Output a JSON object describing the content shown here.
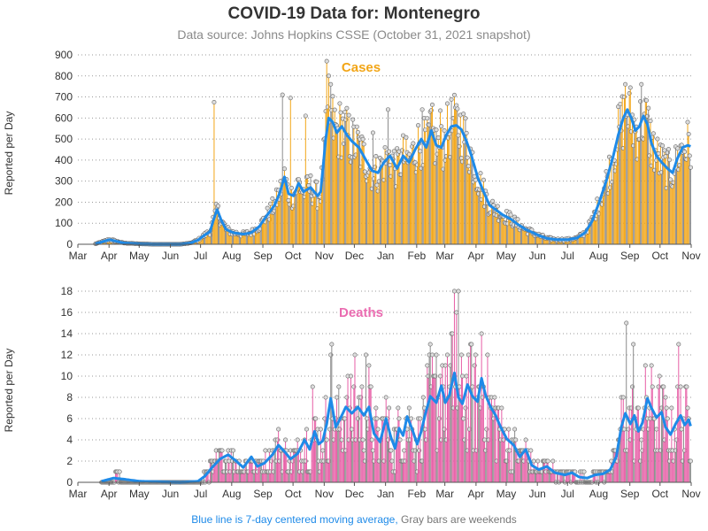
{
  "title": "COVID-19 Data for: Montenegro",
  "subtitle": "Data source: Johns Hopkins CSSE (October 31, 2021 snapshot)",
  "footnote": {
    "blue_text": "Blue line is 7-day centered moving average,",
    "gray_text": "Gray bars are weekends"
  },
  "colors": {
    "cases": "#f2a516",
    "cases_label": "#f2a516",
    "deaths": "#e75ea6",
    "deaths_label": "#ea6bb0",
    "average": "#1e8ae8",
    "weekend": "#8c8c8c",
    "grid": "#999999"
  },
  "chart_data": [
    {
      "type": "bar",
      "label": "Cases",
      "ylabel": "Reported per Day",
      "ylim": [
        0,
        900
      ],
      "yticks": [
        0,
        100,
        200,
        300,
        400,
        500,
        600,
        700,
        800,
        900
      ],
      "months": [
        "Mar",
        "Apr",
        "May",
        "Jun",
        "Jul",
        "Aug",
        "Sep",
        "Oct",
        "Nov",
        "Dec",
        "Jan",
        "Feb",
        "Mar",
        "Apr",
        "May",
        "Jun",
        "Jul",
        "Aug",
        "Sep",
        "Oct",
        "Nov"
      ],
      "grid": "horizontal dotted",
      "series": [
        {
          "name": "Cases",
          "description": "daily reported cases (bars, gray on weekends)"
        },
        {
          "name": "7-day average",
          "description": "blue moving-average line"
        }
      ],
      "average_points": [
        [
          "2020-03-18",
          2
        ],
        [
          "2020-03-25",
          12
        ],
        [
          "2020-04-01",
          22
        ],
        [
          "2020-04-08",
          14
        ],
        [
          "2020-04-15",
          6
        ],
        [
          "2020-04-30",
          2
        ],
        [
          "2020-05-15",
          0
        ],
        [
          "2020-06-10",
          0
        ],
        [
          "2020-06-20",
          5
        ],
        [
          "2020-06-28",
          20
        ],
        [
          "2020-07-05",
          45
        ],
        [
          "2020-07-10",
          60
        ],
        [
          "2020-07-13",
          110
        ],
        [
          "2020-07-17",
          165
        ],
        [
          "2020-07-21",
          115
        ],
        [
          "2020-07-26",
          70
        ],
        [
          "2020-08-02",
          55
        ],
        [
          "2020-08-12",
          48
        ],
        [
          "2020-08-20",
          55
        ],
        [
          "2020-08-28",
          85
        ],
        [
          "2020-09-05",
          140
        ],
        [
          "2020-09-12",
          185
        ],
        [
          "2020-09-17",
          240
        ],
        [
          "2020-09-22",
          320
        ],
        [
          "2020-09-26",
          240
        ],
        [
          "2020-10-01",
          230
        ],
        [
          "2020-10-06",
          290
        ],
        [
          "2020-10-11",
          250
        ],
        [
          "2020-10-18",
          270
        ],
        [
          "2020-10-25",
          230
        ],
        [
          "2020-10-28",
          250
        ],
        [
          "2020-11-02",
          500
        ],
        [
          "2020-11-05",
          600
        ],
        [
          "2020-11-09",
          580
        ],
        [
          "2020-11-13",
          530
        ],
        [
          "2020-11-18",
          560
        ],
        [
          "2020-11-23",
          520
        ],
        [
          "2020-11-28",
          490
        ],
        [
          "2020-12-05",
          460
        ],
        [
          "2020-12-12",
          400
        ],
        [
          "2020-12-18",
          350
        ],
        [
          "2020-12-24",
          340
        ],
        [
          "2020-12-30",
          390
        ],
        [
          "2021-01-05",
          420
        ],
        [
          "2021-01-12",
          360
        ],
        [
          "2021-01-18",
          420
        ],
        [
          "2021-01-24",
          390
        ],
        [
          "2021-01-30",
          450
        ],
        [
          "2021-02-05",
          500
        ],
        [
          "2021-02-10",
          460
        ],
        [
          "2021-02-15",
          540
        ],
        [
          "2021-02-20",
          470
        ],
        [
          "2021-02-25",
          460
        ],
        [
          "2021-03-02",
          520
        ],
        [
          "2021-03-07",
          560
        ],
        [
          "2021-03-12",
          565
        ],
        [
          "2021-03-17",
          545
        ],
        [
          "2021-03-22",
          490
        ],
        [
          "2021-03-27",
          420
        ],
        [
          "2021-04-02",
          320
        ],
        [
          "2021-04-08",
          250
        ],
        [
          "2021-04-14",
          185
        ],
        [
          "2021-04-20",
          165
        ],
        [
          "2021-04-27",
          140
        ],
        [
          "2021-05-05",
          120
        ],
        [
          "2021-05-12",
          95
        ],
        [
          "2021-05-20",
          70
        ],
        [
          "2021-05-27",
          55
        ],
        [
          "2021-06-03",
          40
        ],
        [
          "2021-06-10",
          28
        ],
        [
          "2021-06-20",
          22
        ],
        [
          "2021-07-01",
          22
        ],
        [
          "2021-07-10",
          30
        ],
        [
          "2021-07-18",
          55
        ],
        [
          "2021-07-25",
          110
        ],
        [
          "2021-08-01",
          200
        ],
        [
          "2021-08-08",
          300
        ],
        [
          "2021-08-15",
          420
        ],
        [
          "2021-08-20",
          520
        ],
        [
          "2021-08-25",
          600
        ],
        [
          "2021-08-29",
          640
        ],
        [
          "2021-09-02",
          600
        ],
        [
          "2021-09-06",
          540
        ],
        [
          "2021-09-10",
          560
        ],
        [
          "2021-09-14",
          610
        ],
        [
          "2021-09-18",
          570
        ],
        [
          "2021-09-22",
          480
        ],
        [
          "2021-09-27",
          420
        ],
        [
          "2021-10-02",
          390
        ],
        [
          "2021-10-08",
          360
        ],
        [
          "2021-10-13",
          340
        ],
        [
          "2021-10-18",
          410
        ],
        [
          "2021-10-23",
          460
        ],
        [
          "2021-10-28",
          470
        ],
        [
          "2021-10-31",
          465
        ]
      ],
      "spikes": [
        [
          "2020-07-14",
          675
        ],
        [
          "2020-09-20",
          710
        ],
        [
          "2020-09-28",
          695
        ],
        [
          "2020-10-13",
          610
        ],
        [
          "2020-11-03",
          870
        ],
        [
          "2020-11-05",
          800
        ],
        [
          "2020-11-07",
          760
        ],
        [
          "2020-12-19",
          530
        ],
        [
          "2021-01-03",
          640
        ],
        [
          "2021-02-06",
          640
        ],
        [
          "2021-02-14",
          630
        ],
        [
          "2021-02-24",
          635
        ],
        [
          "2021-03-12",
          660
        ],
        [
          "2021-08-27",
          760
        ],
        [
          "2021-09-12",
          760
        ]
      ]
    },
    {
      "type": "bar",
      "label": "Deaths",
      "ylabel": "Reported per Day",
      "ylim": [
        0,
        18
      ],
      "yticks": [
        0,
        2,
        4,
        6,
        8,
        10,
        12,
        14,
        16,
        18
      ],
      "months": [
        "Mar",
        "Apr",
        "May",
        "Jun",
        "Jul",
        "Aug",
        "Sep",
        "Oct",
        "Nov",
        "Dec",
        "Jan",
        "Feb",
        "Mar",
        "Apr",
        "May",
        "Jun",
        "Jul",
        "Aug",
        "Sep",
        "Oct",
        "Nov"
      ],
      "grid": "horizontal dotted",
      "series": [
        {
          "name": "Deaths",
          "description": "daily reported deaths (bars, gray on weekends)"
        },
        {
          "name": "7-day average",
          "description": "blue moving-average line"
        }
      ],
      "average_points": [
        [
          "2020-03-24",
          0.1
        ],
        [
          "2020-04-05",
          0.4
        ],
        [
          "2020-04-15",
          0.3
        ],
        [
          "2020-05-01",
          0.1
        ],
        [
          "2020-06-10",
          0
        ],
        [
          "2020-06-28",
          0.1
        ],
        [
          "2020-07-05",
          0.6
        ],
        [
          "2020-07-12",
          1.4
        ],
        [
          "2020-07-20",
          2.2
        ],
        [
          "2020-07-28",
          2.6
        ],
        [
          "2020-08-05",
          2
        ],
        [
          "2020-08-12",
          1.4
        ],
        [
          "2020-08-20",
          2.4
        ],
        [
          "2020-08-26",
          1.5
        ],
        [
          "2020-09-02",
          1.8
        ],
        [
          "2020-09-10",
          2.6
        ],
        [
          "2020-09-16",
          3.5
        ],
        [
          "2020-09-22",
          2.9
        ],
        [
          "2020-09-28",
          2.2
        ],
        [
          "2020-10-05",
          2.7
        ],
        [
          "2020-10-12",
          4
        ],
        [
          "2020-10-17",
          3.1
        ],
        [
          "2020-10-22",
          4.8
        ],
        [
          "2020-10-26",
          3.6
        ],
        [
          "2020-10-30",
          3.9
        ],
        [
          "2020-11-03",
          5.5
        ],
        [
          "2020-11-07",
          7.9
        ],
        [
          "2020-11-12",
          5.2
        ],
        [
          "2020-11-17",
          6.1
        ],
        [
          "2020-11-22",
          7.1
        ],
        [
          "2020-11-28",
          6.5
        ],
        [
          "2020-12-04",
          7.1
        ],
        [
          "2020-12-10",
          6.3
        ],
        [
          "2020-12-15",
          7.1
        ],
        [
          "2020-12-20",
          4.6
        ],
        [
          "2020-12-26",
          3.8
        ],
        [
          "2021-01-01",
          6
        ],
        [
          "2021-01-06",
          4.2
        ],
        [
          "2021-01-10",
          3.2
        ],
        [
          "2021-01-14",
          5.1
        ],
        [
          "2021-01-18",
          4.4
        ],
        [
          "2021-01-22",
          6.2
        ],
        [
          "2021-01-27",
          5
        ],
        [
          "2021-02-01",
          3.6
        ],
        [
          "2021-02-05",
          4.8
        ],
        [
          "2021-02-09",
          6.4
        ],
        [
          "2021-02-14",
          8.1
        ],
        [
          "2021-02-20",
          7.5
        ],
        [
          "2021-02-25",
          9.1
        ],
        [
          "2021-03-01",
          7.5
        ],
        [
          "2021-03-05",
          8.2
        ],
        [
          "2021-03-10",
          10.3
        ],
        [
          "2021-03-14",
          8
        ],
        [
          "2021-03-18",
          7.4
        ],
        [
          "2021-03-23",
          9.2
        ],
        [
          "2021-03-28",
          8.1
        ],
        [
          "2021-04-02",
          7.6
        ],
        [
          "2021-04-06",
          9.8
        ],
        [
          "2021-04-10",
          8.2
        ],
        [
          "2021-04-15",
          7.1
        ],
        [
          "2021-04-20",
          6.3
        ],
        [
          "2021-04-25",
          5.2
        ],
        [
          "2021-05-01",
          4.1
        ],
        [
          "2021-05-08",
          3.5
        ],
        [
          "2021-05-14",
          2.4
        ],
        [
          "2021-05-20",
          3.1
        ],
        [
          "2021-05-26",
          1.6
        ],
        [
          "2021-06-02",
          1.2
        ],
        [
          "2021-06-10",
          1.5
        ],
        [
          "2021-06-18",
          0.9
        ],
        [
          "2021-06-28",
          0.7
        ],
        [
          "2021-07-05",
          0.9
        ],
        [
          "2021-07-12",
          0.5
        ],
        [
          "2021-07-20",
          0.4
        ],
        [
          "2021-07-28",
          0.7
        ],
        [
          "2021-08-05",
          0.8
        ],
        [
          "2021-08-12",
          1.2
        ],
        [
          "2021-08-18",
          2.4
        ],
        [
          "2021-08-23",
          5.2
        ],
        [
          "2021-08-27",
          6.5
        ],
        [
          "2021-09-01",
          5.5
        ],
        [
          "2021-09-05",
          6.3
        ],
        [
          "2021-09-09",
          4.8
        ],
        [
          "2021-09-13",
          5.6
        ],
        [
          "2021-09-18",
          7.9
        ],
        [
          "2021-09-22",
          7
        ],
        [
          "2021-09-27",
          6.1
        ],
        [
          "2021-10-02",
          6.6
        ],
        [
          "2021-10-06",
          5.2
        ],
        [
          "2021-10-11",
          4.5
        ],
        [
          "2021-10-16",
          5.5
        ],
        [
          "2021-10-21",
          6.3
        ],
        [
          "2021-10-25",
          5.4
        ],
        [
          "2021-10-29",
          5.9
        ],
        [
          "2021-10-31",
          5.3
        ]
      ],
      "spikes": [
        [
          "2020-10-20",
          9
        ],
        [
          "2020-11-08",
          13
        ],
        [
          "2020-12-01",
          12
        ],
        [
          "2020-12-12",
          12
        ],
        [
          "2021-02-20",
          12
        ],
        [
          "2021-02-26",
          11
        ],
        [
          "2021-03-03",
          12
        ],
        [
          "2021-03-10",
          18
        ],
        [
          "2021-03-14",
          18
        ],
        [
          "2021-03-12",
          16
        ],
        [
          "2021-04-06",
          14
        ],
        [
          "2021-08-28",
          15
        ],
        [
          "2021-09-04",
          13
        ],
        [
          "2021-10-19",
          13
        ]
      ]
    }
  ]
}
